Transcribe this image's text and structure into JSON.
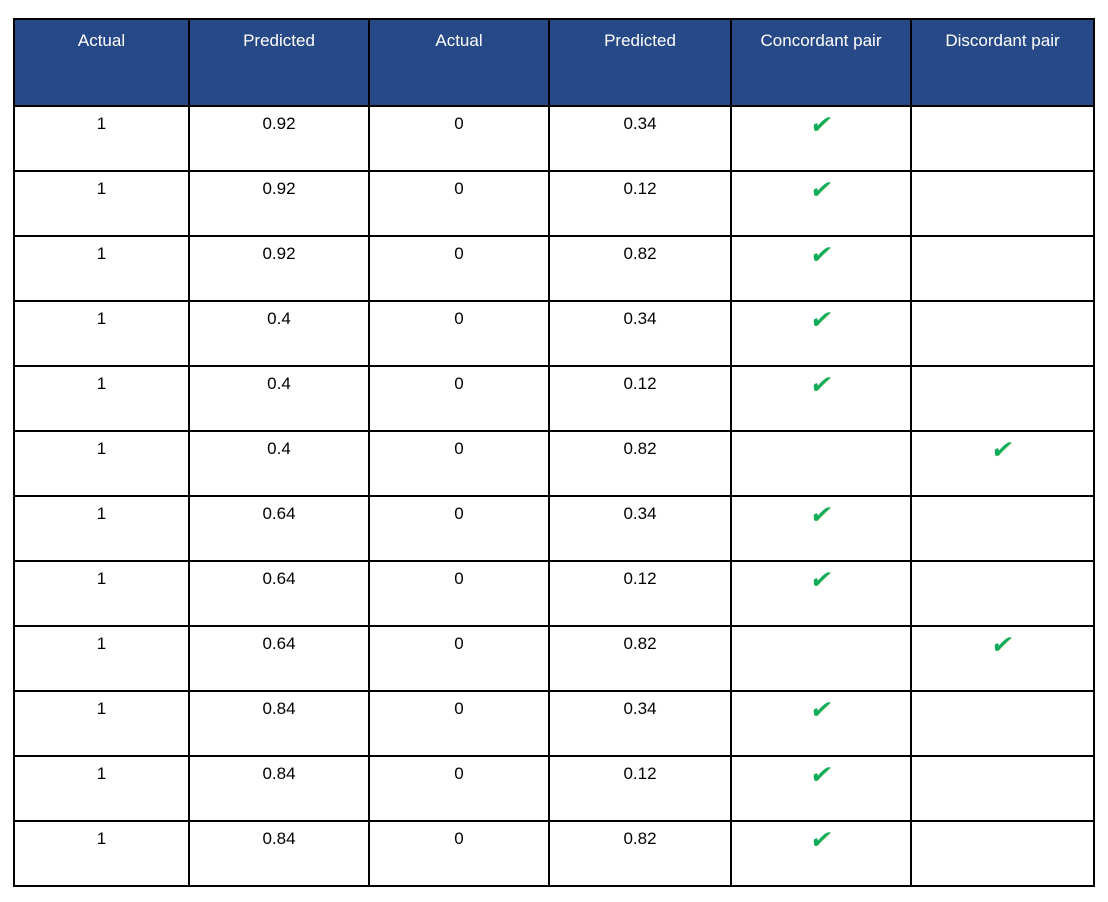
{
  "table": {
    "headers": [
      "Actual",
      "Predicted",
      "Actual",
      "Predicted",
      "Concordant pair",
      "Discordant pair"
    ],
    "rows": [
      [
        "1",
        "0.92",
        "0",
        "0.34",
        "check",
        ""
      ],
      [
        "1",
        "0.92",
        "0",
        "0.12",
        "check",
        ""
      ],
      [
        "1",
        "0.92",
        "0",
        "0.82",
        "check",
        ""
      ],
      [
        "1",
        "0.4",
        "0",
        "0.34",
        "check",
        ""
      ],
      [
        "1",
        "0.4",
        "0",
        "0.12",
        "check",
        ""
      ],
      [
        "1",
        "0.4",
        "0",
        "0.82",
        "",
        "check"
      ],
      [
        "1",
        "0.64",
        "0",
        "0.34",
        "check",
        ""
      ],
      [
        "1",
        "0.64",
        "0",
        "0.12",
        "check",
        ""
      ],
      [
        "1",
        "0.64",
        "0",
        "0.82",
        "",
        "check"
      ],
      [
        "1",
        "0.84",
        "0",
        "0.34",
        "check",
        ""
      ],
      [
        "1",
        "0.84",
        "0",
        "0.12",
        "check",
        ""
      ],
      [
        "1",
        "0.84",
        "0",
        "0.82",
        "check",
        ""
      ]
    ]
  },
  "icons": {
    "check": "✔"
  },
  "colors": {
    "header_bg": "#274987",
    "check_green": "#0FAD5B",
    "border": "#000000"
  },
  "chart_data": {
    "type": "table",
    "title": "",
    "columns": [
      "Actual",
      "Predicted",
      "Actual",
      "Predicted",
      "Concordant pair",
      "Discordant pair"
    ],
    "rows": [
      [
        1,
        0.92,
        0,
        0.34,
        "concordant",
        ""
      ],
      [
        1,
        0.92,
        0,
        0.12,
        "concordant",
        ""
      ],
      [
        1,
        0.92,
        0,
        0.82,
        "concordant",
        ""
      ],
      [
        1,
        0.4,
        0,
        0.34,
        "concordant",
        ""
      ],
      [
        1,
        0.4,
        0,
        0.12,
        "concordant",
        ""
      ],
      [
        1,
        0.4,
        0,
        0.82,
        "",
        "discordant"
      ],
      [
        1,
        0.64,
        0,
        0.34,
        "concordant",
        ""
      ],
      [
        1,
        0.64,
        0,
        0.12,
        "concordant",
        ""
      ],
      [
        1,
        0.64,
        0,
        0.82,
        "",
        "discordant"
      ],
      [
        1,
        0.84,
        0,
        0.34,
        "concordant",
        ""
      ],
      [
        1,
        0.84,
        0,
        0.12,
        "concordant",
        ""
      ],
      [
        1,
        0.84,
        0,
        0.82,
        "concordant",
        ""
      ]
    ]
  }
}
